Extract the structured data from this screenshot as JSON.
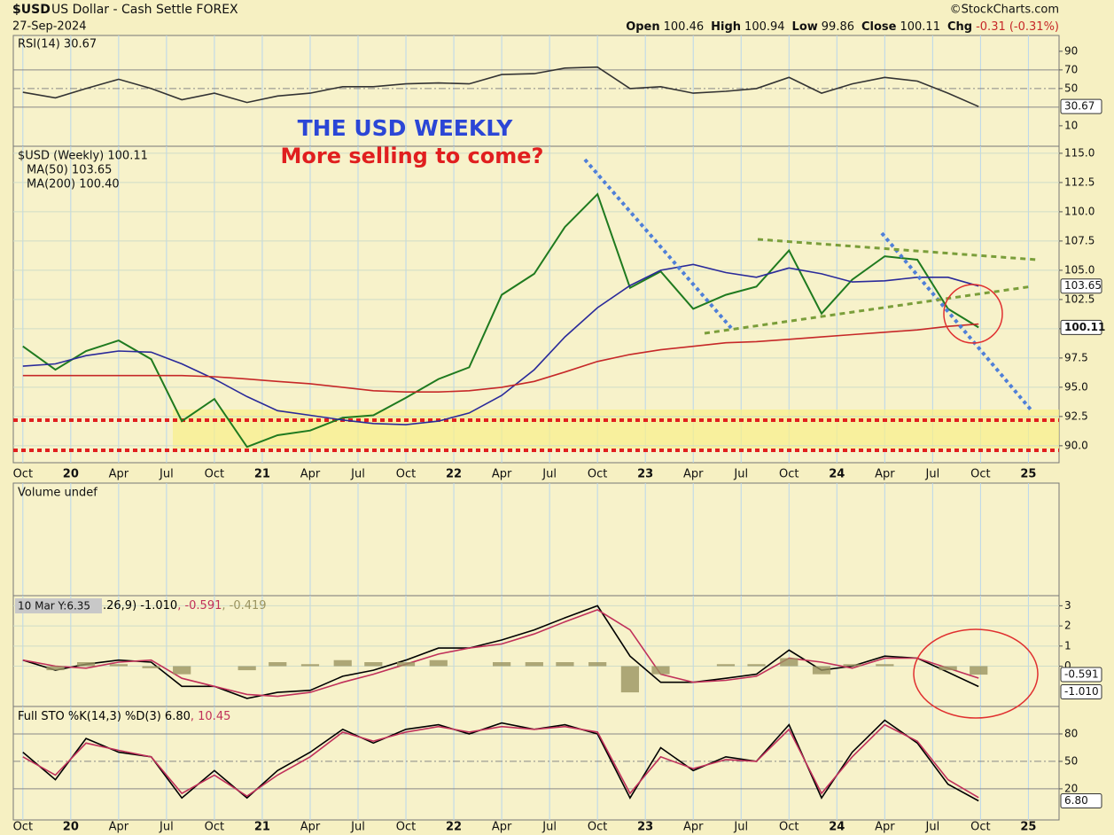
{
  "chart_data": {
    "type": "line",
    "symbol": "$USD",
    "name": "US Dollar - Cash Settle FOREX",
    "date": "27-Sep-2024",
    "source": "©StockCharts.com",
    "quote": [
      {
        "label": "Open",
        "value": "100.46"
      },
      {
        "label": "High",
        "value": "100.94"
      },
      {
        "label": "Low",
        "value": "99.86"
      },
      {
        "label": "Close",
        "value": "100.11"
      },
      {
        "label": "Chg",
        "value": "-0.31 (-0.31%)"
      }
    ],
    "annotations": [
      "THE USD WEEKLY",
      "More selling to come?"
    ],
    "tooltip": "10 Mar Y:6.35",
    "grid": true,
    "xlim": [
      2019.7,
      2025.16
    ],
    "xticks": [
      {
        "value": 2019.75,
        "label": "Oct"
      },
      {
        "value": 2020,
        "label": "20"
      },
      {
        "value": 2020.25,
        "label": "Apr"
      },
      {
        "value": 2020.5,
        "label": "Jul"
      },
      {
        "value": 2020.75,
        "label": "Oct"
      },
      {
        "value": 2021,
        "label": "21"
      },
      {
        "value": 2021.25,
        "label": "Apr"
      },
      {
        "value": 2021.5,
        "label": "Jul"
      },
      {
        "value": 2021.75,
        "label": "Oct"
      },
      {
        "value": 2022,
        "label": "22"
      },
      {
        "value": 2022.25,
        "label": "Apr"
      },
      {
        "value": 2022.5,
        "label": "Jul"
      },
      {
        "value": 2022.75,
        "label": "Oct"
      },
      {
        "value": 2023,
        "label": "23"
      },
      {
        "value": 2023.25,
        "label": "Apr"
      },
      {
        "value": 2023.5,
        "label": "Jul"
      },
      {
        "value": 2023.75,
        "label": "Oct"
      },
      {
        "value": 2024,
        "label": "24"
      },
      {
        "value": 2024.25,
        "label": "Apr"
      },
      {
        "value": 2024.5,
        "label": "Jul"
      },
      {
        "value": 2024.75,
        "label": "Oct"
      },
      {
        "value": 2025,
        "label": "25"
      }
    ],
    "x": [
      2019.75,
      2019.92,
      2020.08,
      2020.25,
      2020.42,
      2020.58,
      2020.75,
      2020.92,
      2021.08,
      2021.25,
      2021.42,
      2021.58,
      2021.75,
      2021.92,
      2022.08,
      2022.25,
      2022.42,
      2022.58,
      2022.75,
      2022.92,
      2023.08,
      2023.25,
      2023.42,
      2023.58,
      2023.75,
      2023.92,
      2024.08,
      2024.25,
      2024.42,
      2024.58,
      2024.74
    ],
    "panels": [
      {
        "ylim": [
          -12,
          107
        ],
        "yticks": [
          10,
          50,
          70,
          90
        ],
        "hlines": [
          30,
          50,
          70
        ],
        "series": [
          {
            "name": "RSI(14) 30.67",
            "color": "#333333",
            "tag": "30.67",
            "values": [
              46,
              40,
              50,
              60,
              50,
              38,
              45,
              35,
              42,
              45,
              52,
              52,
              55,
              56,
              55,
              65,
              66,
              72,
              73,
              50,
              52,
              45,
              47,
              50,
              62,
              45,
              55,
              62,
              58,
              45,
              30.67
            ]
          }
        ]
      },
      {
        "ylim": [
          88.55,
          115.6
        ],
        "yticks": [
          {
            "value": 90,
            "label": "90.0"
          },
          {
            "value": 92.5,
            "label": "92.5"
          },
          {
            "value": 95,
            "label": "95.0"
          },
          {
            "value": 97.5,
            "label": "97.5"
          },
          {
            "value": 100,
            "label": "100.0"
          },
          {
            "value": 102.5,
            "label": "102.5"
          },
          {
            "value": 105,
            "label": "105.0"
          },
          {
            "value": 107.5,
            "label": "107.5"
          },
          {
            "value": 110,
            "label": "110.0"
          },
          {
            "value": 112.5,
            "label": "112.5"
          },
          {
            "value": 115,
            "label": "115.0"
          }
        ],
        "series": [
          {
            "name": "$USD (Weekly) 100.11",
            "color": "#1f7a1f",
            "tag": "100.11",
            "values": [
              98.5,
              96.5,
              98.1,
              99.0,
              97.4,
              92.1,
              94.0,
              89.9,
              90.9,
              91.3,
              92.4,
              92.6,
              94.1,
              95.7,
              96.7,
              102.9,
              104.7,
              108.7,
              111.5,
              103.5,
              104.9,
              101.7,
              102.9,
              103.6,
              106.7,
              101.3,
              104.2,
              106.2,
              105.9,
              101.7,
              100.11
            ]
          },
          {
            "name": "MA(50) 103.65",
            "color": "#2a2a9a",
            "tag": "103.65",
            "values": [
              96.8,
              97.0,
              97.7,
              98.1,
              98.0,
              97.0,
              95.7,
              94.2,
              93.0,
              92.6,
              92.2,
              91.9,
              91.8,
              92.1,
              92.8,
              94.3,
              96.5,
              99.3,
              101.8,
              103.7,
              105.0,
              105.5,
              104.8,
              104.4,
              105.2,
              104.7,
              104.0,
              104.1,
              104.4,
              104.4,
              103.65
            ]
          },
          {
            "name": "MA(200) 100.40",
            "color": "#c62828",
            "values": [
              96.0,
              96.0,
              96.0,
              96.0,
              96.0,
              96.0,
              95.9,
              95.7,
              95.5,
              95.3,
              95.0,
              94.7,
              94.6,
              94.6,
              94.7,
              95.0,
              95.5,
              96.3,
              97.2,
              97.8,
              98.2,
              98.5,
              98.8,
              98.9,
              99.1,
              99.3,
              99.5,
              99.7,
              99.9,
              100.2,
              100.4
            ]
          }
        ]
      },
      {
        "label": "Volume undef",
        "series": []
      },
      {
        "ylim": [
          -2.0,
          3.5
        ],
        "yticks": [
          0,
          1,
          2,
          3
        ],
        "legend_parts": [
          ".26,9) -1.010",
          ", -0.591",
          ", -0.419"
        ],
        "series": [
          {
            "color": "#000000",
            "tag": "-1.010",
            "values": [
              0.3,
              -0.2,
              0.1,
              0.3,
              0.2,
              -1.0,
              -1.0,
              -1.6,
              -1.3,
              -1.2,
              -0.5,
              -0.2,
              0.3,
              0.9,
              0.9,
              1.3,
              1.8,
              2.4,
              3.0,
              0.5,
              -0.8,
              -0.8,
              -0.6,
              -0.4,
              0.8,
              -0.2,
              0.0,
              0.5,
              0.4,
              -0.3,
              -1.01
            ]
          },
          {
            "color": "#c0305a",
            "tag": "-0.591",
            "values": [
              0.3,
              0.0,
              -0.1,
              0.2,
              0.3,
              -0.6,
              -1.0,
              -1.4,
              -1.5,
              -1.3,
              -0.8,
              -0.4,
              0.1,
              0.6,
              0.9,
              1.1,
              1.6,
              2.2,
              2.8,
              1.8,
              -0.4,
              -0.8,
              -0.7,
              -0.5,
              0.4,
              0.2,
              -0.1,
              0.4,
              0.4,
              -0.1,
              -0.591
            ]
          },
          {
            "color": "#9a9460",
            "kind": "bar",
            "values": [
              0.0,
              -0.2,
              0.2,
              0.1,
              -0.1,
              -0.4,
              0.0,
              -0.2,
              0.2,
              0.1,
              0.3,
              0.2,
              0.2,
              0.3,
              0.0,
              0.2,
              0.2,
              0.2,
              0.2,
              -1.3,
              -0.4,
              0.0,
              0.1,
              0.1,
              0.4,
              -0.4,
              0.1,
              0.1,
              0.0,
              -0.2,
              -0.419
            ]
          }
        ]
      },
      {
        "ylim": [
          -14,
          110
        ],
        "yticks": [
          20,
          50,
          80
        ],
        "hlines": [
          20,
          50,
          80
        ],
        "legend_parts": [
          "Full STO %K(14,3) %D(3) 6.80",
          ", 10.45"
        ],
        "series": [
          {
            "color": "#000000",
            "tag": "6.80",
            "values": [
              60,
              30,
              75,
              60,
              55,
              10,
              40,
              10,
              40,
              60,
              85,
              70,
              85,
              90,
              80,
              92,
              85,
              90,
              80,
              10,
              65,
              40,
              55,
              50,
              90,
              10,
              60,
              95,
              70,
              25,
              6.8
            ]
          },
          {
            "color": "#c0305a",
            "values": [
              55,
              35,
              70,
              62,
              55,
              15,
              35,
              12,
              35,
              55,
              82,
              72,
              82,
              88,
              82,
              88,
              85,
              88,
              82,
              15,
              55,
              42,
              52,
              50,
              85,
              15,
              55,
              90,
              72,
              30,
              10.45
            ]
          }
        ]
      }
    ]
  }
}
